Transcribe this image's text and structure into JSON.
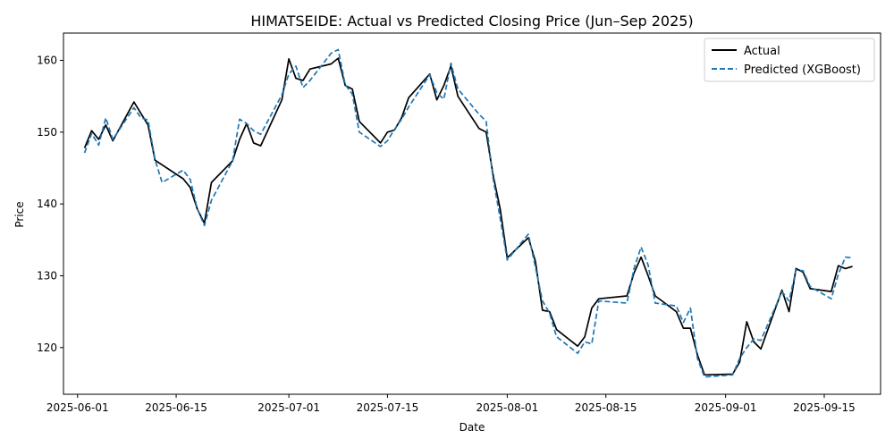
{
  "chart_data": {
    "type": "line",
    "title": "HIMATSEIDE: Actual vs Predicted Closing Price (Jun–Sep 2025)",
    "xlabel": "Date",
    "ylabel": "Price",
    "x_ticks": [
      "2025-06-01",
      "2025-06-15",
      "2025-07-01",
      "2025-07-15",
      "2025-08-01",
      "2025-08-15",
      "2025-09-01",
      "2025-09-15"
    ],
    "y_ticks": [
      120,
      130,
      140,
      150,
      160
    ],
    "xlim": [
      "2025-05-30",
      "2025-09-23"
    ],
    "ylim": [
      113.5,
      163.8
    ],
    "grid": false,
    "legend_position": "top-right",
    "series": [
      {
        "name": "Actual",
        "color": "#000000",
        "style": "solid",
        "points": [
          [
            "2025-06-02",
            147.8
          ],
          [
            "2025-06-03",
            150.2
          ],
          [
            "2025-06-04",
            149.0
          ],
          [
            "2025-06-05",
            151.0
          ],
          [
            "2025-06-06",
            148.8
          ],
          [
            "2025-06-09",
            154.2
          ],
          [
            "2025-06-11",
            151.0
          ],
          [
            "2025-06-12",
            146.1
          ],
          [
            "2025-06-16",
            143.5
          ],
          [
            "2025-06-17",
            142.3
          ],
          [
            "2025-06-18",
            139.3
          ],
          [
            "2025-06-19",
            137.3
          ],
          [
            "2025-06-20",
            143.0
          ],
          [
            "2025-06-23",
            146.0
          ],
          [
            "2025-06-24",
            149.0
          ],
          [
            "2025-06-25",
            151.2
          ],
          [
            "2025-06-26",
            148.5
          ],
          [
            "2025-06-27",
            148.1
          ],
          [
            "2025-06-30",
            154.5
          ],
          [
            "2025-07-01",
            160.2
          ],
          [
            "2025-07-02",
            157.5
          ],
          [
            "2025-07-03",
            157.2
          ],
          [
            "2025-07-04",
            158.8
          ],
          [
            "2025-07-07",
            159.5
          ],
          [
            "2025-07-08",
            160.3
          ],
          [
            "2025-07-09",
            156.5
          ],
          [
            "2025-07-10",
            156.0
          ],
          [
            "2025-07-11",
            151.5
          ],
          [
            "2025-07-14",
            148.5
          ],
          [
            "2025-07-15",
            150.0
          ],
          [
            "2025-07-16",
            150.3
          ],
          [
            "2025-07-17",
            152.0
          ],
          [
            "2025-07-18",
            154.8
          ],
          [
            "2025-07-21",
            158.1
          ],
          [
            "2025-07-22",
            154.5
          ],
          [
            "2025-07-23",
            156.5
          ],
          [
            "2025-07-24",
            159.2
          ],
          [
            "2025-07-25",
            155.0
          ],
          [
            "2025-07-28",
            150.5
          ],
          [
            "2025-07-29",
            150.0
          ],
          [
            "2025-07-30",
            144.0
          ],
          [
            "2025-07-31",
            139.3
          ],
          [
            "2025-08-01",
            132.5
          ],
          [
            "2025-08-04",
            135.3
          ],
          [
            "2025-08-05",
            132.0
          ],
          [
            "2025-08-06",
            125.2
          ],
          [
            "2025-08-07",
            125.0
          ],
          [
            "2025-08-08",
            122.5
          ],
          [
            "2025-08-11",
            120.2
          ],
          [
            "2025-08-12",
            121.5
          ],
          [
            "2025-08-13",
            125.5
          ],
          [
            "2025-08-14",
            126.8
          ],
          [
            "2025-08-18",
            127.2
          ],
          [
            "2025-08-19",
            130.4
          ],
          [
            "2025-08-20",
            132.6
          ],
          [
            "2025-08-21",
            130.0
          ],
          [
            "2025-08-22",
            127.2
          ],
          [
            "2025-08-25",
            125.0
          ],
          [
            "2025-08-26",
            122.7
          ],
          [
            "2025-08-27",
            122.7
          ],
          [
            "2025-08-28",
            119.0
          ],
          [
            "2025-08-29",
            116.2
          ],
          [
            "2025-09-02",
            116.3
          ],
          [
            "2025-09-03",
            118.0
          ],
          [
            "2025-09-04",
            123.6
          ],
          [
            "2025-09-05",
            120.8
          ],
          [
            "2025-09-06",
            119.8
          ],
          [
            "2025-09-09",
            128.0
          ],
          [
            "2025-09-10",
            125.0
          ],
          [
            "2025-09-11",
            131.0
          ],
          [
            "2025-09-12",
            130.5
          ],
          [
            "2025-09-13",
            128.2
          ],
          [
            "2025-09-16",
            127.8
          ],
          [
            "2025-09-17",
            131.4
          ],
          [
            "2025-09-18",
            131.0
          ],
          [
            "2025-09-19",
            131.3
          ]
        ]
      },
      {
        "name": "Predicted (XGBoost)",
        "color": "#1f77b4",
        "style": "dashed",
        "points": [
          [
            "2025-06-02",
            147.1
          ],
          [
            "2025-06-03",
            149.8
          ],
          [
            "2025-06-04",
            148.2
          ],
          [
            "2025-06-05",
            152.0
          ],
          [
            "2025-06-06",
            149.0
          ],
          [
            "2025-06-09",
            153.4
          ],
          [
            "2025-06-10",
            152.0
          ],
          [
            "2025-06-11",
            151.7
          ],
          [
            "2025-06-12",
            146.2
          ],
          [
            "2025-06-13",
            143.0
          ],
          [
            "2025-06-16",
            144.7
          ],
          [
            "2025-06-17",
            143.4
          ],
          [
            "2025-06-18",
            139.3
          ],
          [
            "2025-06-19",
            137.0
          ],
          [
            "2025-06-20",
            140.5
          ],
          [
            "2025-06-23",
            146.0
          ],
          [
            "2025-06-24",
            151.8
          ],
          [
            "2025-06-25",
            151.2
          ],
          [
            "2025-06-26",
            150.2
          ],
          [
            "2025-06-27",
            149.7
          ],
          [
            "2025-06-30",
            155.2
          ],
          [
            "2025-07-01",
            158.1
          ],
          [
            "2025-07-02",
            159.2
          ],
          [
            "2025-07-03",
            156.2
          ],
          [
            "2025-07-04",
            157.2
          ],
          [
            "2025-07-07",
            161.0
          ],
          [
            "2025-07-08",
            161.5
          ],
          [
            "2025-07-09",
            156.6
          ],
          [
            "2025-07-10",
            155.3
          ],
          [
            "2025-07-11",
            150.0
          ],
          [
            "2025-07-14",
            148.0
          ],
          [
            "2025-07-15",
            148.8
          ],
          [
            "2025-07-16",
            150.4
          ],
          [
            "2025-07-17",
            151.8
          ],
          [
            "2025-07-18",
            153.5
          ],
          [
            "2025-07-21",
            158.0
          ],
          [
            "2025-07-22",
            155.5
          ],
          [
            "2025-07-23",
            154.6
          ],
          [
            "2025-07-24",
            159.6
          ],
          [
            "2025-07-25",
            156.0
          ],
          [
            "2025-07-28",
            152.5
          ],
          [
            "2025-07-29",
            151.5
          ],
          [
            "2025-07-30",
            143.5
          ],
          [
            "2025-07-31",
            138.0
          ],
          [
            "2025-08-01",
            132.2
          ],
          [
            "2025-08-04",
            135.8
          ],
          [
            "2025-08-05",
            131.2
          ],
          [
            "2025-08-06",
            126.5
          ],
          [
            "2025-08-07",
            124.8
          ],
          [
            "2025-08-08",
            121.5
          ],
          [
            "2025-08-11",
            119.2
          ],
          [
            "2025-08-12",
            120.8
          ],
          [
            "2025-08-13",
            120.5
          ],
          [
            "2025-08-14",
            126.5
          ],
          [
            "2025-08-18",
            126.2
          ],
          [
            "2025-08-19",
            131.0
          ],
          [
            "2025-08-20",
            134.0
          ],
          [
            "2025-08-21",
            131.5
          ],
          [
            "2025-08-22",
            126.2
          ],
          [
            "2025-08-25",
            125.8
          ],
          [
            "2025-08-26",
            123.5
          ],
          [
            "2025-08-27",
            125.5
          ],
          [
            "2025-08-28",
            118.5
          ],
          [
            "2025-08-29",
            115.9
          ],
          [
            "2025-09-02",
            116.2
          ],
          [
            "2025-09-03",
            118.5
          ],
          [
            "2025-09-04",
            120.0
          ],
          [
            "2025-09-05",
            121.2
          ],
          [
            "2025-09-06",
            121.0
          ],
          [
            "2025-09-09",
            127.8
          ],
          [
            "2025-09-10",
            126.5
          ],
          [
            "2025-09-11",
            130.8
          ],
          [
            "2025-09-12",
            130.7
          ],
          [
            "2025-09-13",
            128.5
          ],
          [
            "2025-09-16",
            126.8
          ],
          [
            "2025-09-17",
            130.2
          ],
          [
            "2025-09-18",
            132.6
          ],
          [
            "2025-09-19",
            132.5
          ]
        ]
      }
    ]
  }
}
